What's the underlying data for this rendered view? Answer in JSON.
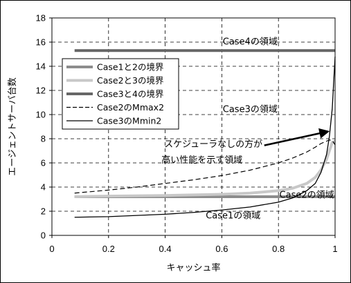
{
  "chart_data": {
    "type": "line",
    "title": "",
    "xlabel": "キャッシュ率",
    "ylabel": "エージェントサーバ台数",
    "xlim": [
      0,
      1
    ],
    "ylim": [
      0,
      18
    ],
    "x_ticks": [
      0,
      0.2,
      0.4,
      0.6,
      0.8,
      1
    ],
    "x_tick_labels": [
      "0",
      "0.2",
      "0.4",
      "0.6",
      "0.8",
      "1"
    ],
    "y_ticks": [
      0,
      2,
      4,
      6,
      8,
      10,
      12,
      14,
      16,
      18
    ],
    "y_tick_labels": [
      "0",
      "2",
      "4",
      "6",
      "8",
      "10",
      "12",
      "14",
      "16",
      "18"
    ],
    "grid": "dashed",
    "legend_position": "upper-left",
    "series": [
      {
        "name": "Case1と2の境界",
        "color": "#8c8c8c",
        "style": "thick-solid",
        "x": [
          0.08,
          1.0
        ],
        "y": [
          3.2,
          3.2
        ]
      },
      {
        "name": "Case2と3の境界",
        "color": "#c8c8c8",
        "style": "thick-solid",
        "x": [
          0.08,
          0.2,
          0.4,
          0.6,
          0.7,
          0.8,
          0.85,
          0.9,
          0.93,
          0.95,
          0.97,
          0.98,
          0.99,
          1.0
        ],
        "y": [
          3.2,
          3.25,
          3.3,
          3.4,
          3.5,
          3.7,
          3.9,
          4.3,
          4.8,
          5.4,
          6.3,
          7.0,
          7.7,
          7.8
        ]
      },
      {
        "name": "Case3と4の境界",
        "color": "#666666",
        "style": "thick-solid",
        "x": [
          0.08,
          1.0
        ],
        "y": [
          15.3,
          15.3
        ]
      },
      {
        "name": "Case2のMmax2",
        "color": "#000000",
        "style": "dashed",
        "x": [
          0.08,
          0.2,
          0.3,
          0.4,
          0.5,
          0.6,
          0.7,
          0.8,
          0.85,
          0.9,
          0.93,
          0.95,
          0.97,
          0.98,
          0.99,
          1.0
        ],
        "y": [
          3.5,
          3.75,
          4.0,
          4.3,
          4.6,
          4.95,
          5.4,
          6.0,
          6.4,
          6.9,
          7.3,
          7.6,
          7.8,
          7.9,
          7.85,
          7.5
        ]
      },
      {
        "name": "Case3のMmin2",
        "color": "#000000",
        "style": "thin-solid",
        "x": [
          0.08,
          0.2,
          0.3,
          0.4,
          0.5,
          0.6,
          0.7,
          0.8,
          0.85,
          0.9,
          0.93,
          0.95,
          0.97,
          0.98,
          0.99,
          1.0
        ],
        "y": [
          1.5,
          1.55,
          1.65,
          1.75,
          1.9,
          2.1,
          2.35,
          2.75,
          3.1,
          3.7,
          4.3,
          5.2,
          6.7,
          8.2,
          10.5,
          14.8
        ]
      }
    ],
    "annotations": [
      {
        "text": "Case4の領域",
        "x": 0.7,
        "y": 16.1
      },
      {
        "text": "Case3の領域",
        "x": 0.7,
        "y": 10.5
      },
      {
        "text": "スケジューラなしの方が",
        "x": 0.57,
        "y": 7.6
      },
      {
        "text": "高い性能を示す領域",
        "x": 0.53,
        "y": 6.3
      },
      {
        "text": "Case2の領域",
        "x": 0.9,
        "y": 3.4
      },
      {
        "text": "Case1の領域",
        "x": 0.64,
        "y": 1.7
      }
    ],
    "arrow": {
      "from": [
        0.75,
        7.45
      ],
      "to": [
        0.975,
        8.6
      ]
    }
  }
}
